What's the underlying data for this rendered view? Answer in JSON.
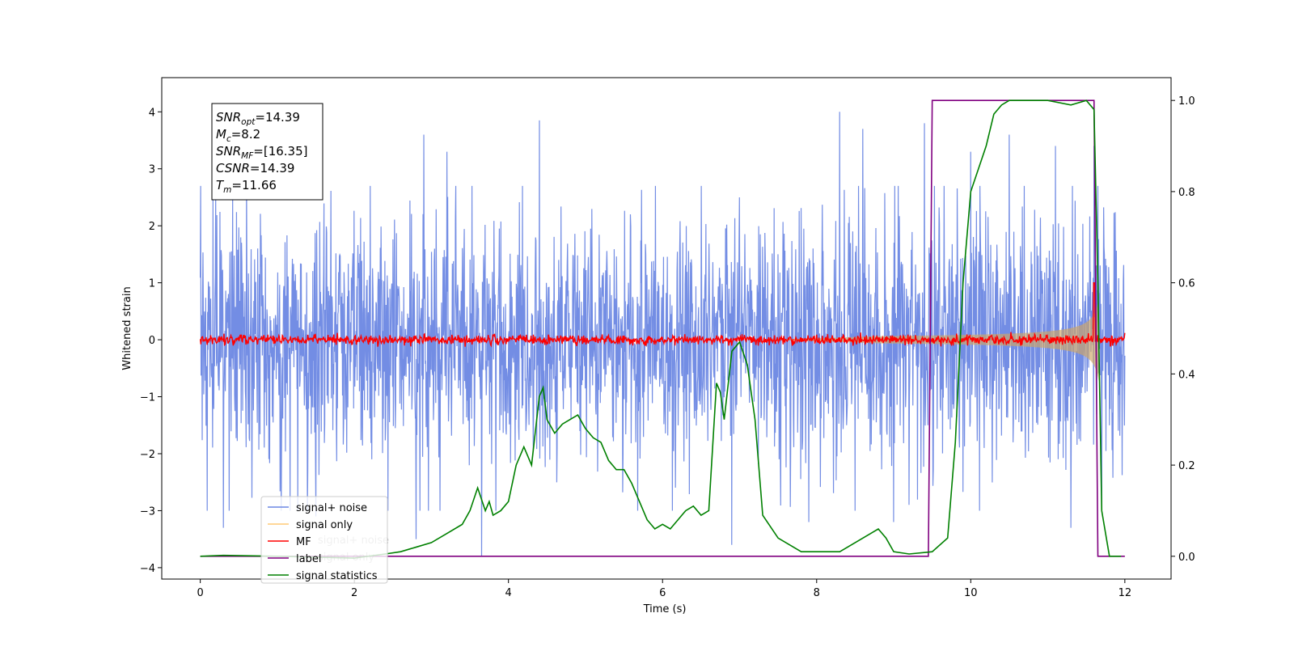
{
  "chart_data": {
    "type": "line",
    "xlabel": "Time (s)",
    "ylabel": "Whitened strain",
    "xlim": [
      -0.5,
      12.6
    ],
    "ylim": [
      -4.2,
      4.6
    ],
    "y2lim": [
      -0.05,
      1.05
    ],
    "xticks": [
      0,
      2,
      4,
      6,
      8,
      10,
      12
    ],
    "xtick_labels": [
      "0",
      "2",
      "4",
      "6",
      "8",
      "10",
      "12"
    ],
    "yticks": [
      -4,
      -3,
      -2,
      -1,
      0,
      1,
      2,
      3,
      4
    ],
    "ytick_labels": [
      "−4",
      "−3",
      "−2",
      "−1",
      "0",
      "1",
      "2",
      "3",
      "4"
    ],
    "y2ticks": [
      0.0,
      0.2,
      0.4,
      0.6,
      0.8,
      1.0
    ],
    "y2tick_labels": [
      "0.0",
      "0.2",
      "0.4",
      "0.6",
      "0.8",
      "1.0"
    ],
    "grid": false,
    "legend": {
      "position": "lower-left",
      "entries": [
        {
          "label": "signal+ noise",
          "color": "#6b87e3"
        },
        {
          "label": "signal only",
          "color": "#ffbf5a"
        },
        {
          "label": "MF",
          "color": "#ff0000"
        },
        {
          "label": "label",
          "color": "#800080"
        },
        {
          "label": "signal statistics",
          "color": "#008000"
        }
      ],
      "ghost_entries": [
        "signal+ noise",
        "signal only"
      ]
    },
    "annotation": {
      "lines": [
        {
          "base": "SNR",
          "sub": "opt",
          "value": "=14.39"
        },
        {
          "base": "M",
          "sub": "c",
          "value": "=8.2"
        },
        {
          "base": "SNR",
          "sub": "MF",
          "value": "=[16.35]"
        },
        {
          "base": "CSNR",
          "sub": "",
          "value": "=14.39"
        },
        {
          "base": "T",
          "sub": "m",
          "value": "=11.66"
        }
      ]
    },
    "series": [
      {
        "name": "signal+ noise",
        "axis": "left",
        "color": "#6b87e3",
        "x_range": [
          0,
          12
        ],
        "band_typical": 2.0,
        "peaks": [
          [
            0.2,
            2.5
          ],
          [
            0.6,
            2.9
          ],
          [
            1.5,
            3.75
          ],
          [
            2.9,
            3.6
          ],
          [
            3.2,
            3.3
          ],
          [
            4.4,
            3.85
          ],
          [
            7.0,
            2.5
          ],
          [
            7.9,
            4.2
          ],
          [
            8.3,
            4.0
          ],
          [
            8.6,
            3.7
          ],
          [
            9.4,
            3.8
          ],
          [
            10.0,
            3.3
          ],
          [
            10.5,
            3.6
          ],
          [
            11.1,
            3.4
          ],
          [
            11.6,
            3.4
          ]
        ],
        "troughs": [
          [
            0.3,
            -3.3
          ],
          [
            1.5,
            -3.1
          ],
          [
            2.8,
            -3.5
          ],
          [
            3.65,
            -3.8
          ],
          [
            6.9,
            -3.6
          ],
          [
            7.9,
            -3.2
          ],
          [
            9.0,
            -3.2
          ],
          [
            11.3,
            -3.3
          ],
          [
            11.7,
            -2.95
          ]
        ]
      },
      {
        "name": "signal only",
        "axis": "left",
        "color": "#ffbf5a",
        "t_merge": 11.66
      },
      {
        "name": "MF",
        "axis": "left",
        "color": "#ff0000",
        "x_range": [
          0,
          12
        ],
        "typical_amplitude": 0.07,
        "spike": [
          11.6,
          1.0
        ]
      },
      {
        "name": "label",
        "axis": "right",
        "color": "#800080",
        "x": [
          0,
          9.45,
          9.5,
          11.6,
          11.65,
          12
        ],
        "y": [
          0,
          0,
          1,
          1,
          0,
          0
        ]
      },
      {
        "name": "signal statistics",
        "axis": "right",
        "color": "#008000",
        "x": [
          0,
          0.3,
          1.0,
          2.0,
          2.4,
          2.6,
          2.8,
          3.0,
          3.2,
          3.4,
          3.5,
          3.6,
          3.7,
          3.75,
          3.8,
          3.9,
          4.0,
          4.1,
          4.2,
          4.3,
          4.4,
          4.45,
          4.5,
          4.6,
          4.7,
          4.8,
          4.9,
          5.0,
          5.1,
          5.2,
          5.3,
          5.4,
          5.5,
          5.6,
          5.7,
          5.8,
          5.9,
          6.0,
          6.1,
          6.2,
          6.3,
          6.4,
          6.5,
          6.6,
          6.7,
          6.75,
          6.8,
          6.9,
          7.0,
          7.1,
          7.2,
          7.3,
          7.5,
          7.8,
          8.0,
          8.3,
          8.5,
          8.7,
          8.8,
          8.9,
          9.0,
          9.2,
          9.5,
          9.7,
          9.8,
          9.9,
          10.0,
          10.1,
          10.2,
          10.3,
          10.4,
          10.5,
          10.7,
          11.0,
          11.3,
          11.5,
          11.6,
          11.65,
          11.7,
          11.8,
          11.95
        ],
        "y": [
          0.0,
          0.002,
          0.0,
          -0.004,
          0.005,
          0.01,
          0.02,
          0.03,
          0.05,
          0.07,
          0.1,
          0.15,
          0.1,
          0.12,
          0.09,
          0.1,
          0.12,
          0.2,
          0.24,
          0.2,
          0.35,
          0.37,
          0.3,
          0.27,
          0.29,
          0.3,
          0.31,
          0.28,
          0.26,
          0.25,
          0.21,
          0.19,
          0.19,
          0.16,
          0.12,
          0.08,
          0.06,
          0.07,
          0.06,
          0.08,
          0.1,
          0.11,
          0.09,
          0.1,
          0.38,
          0.36,
          0.3,
          0.45,
          0.47,
          0.42,
          0.3,
          0.09,
          0.04,
          0.01,
          0.01,
          0.01,
          0.03,
          0.05,
          0.06,
          0.04,
          0.01,
          0.005,
          0.01,
          0.04,
          0.25,
          0.6,
          0.8,
          0.85,
          0.9,
          0.97,
          0.99,
          1.0,
          1.0,
          1.0,
          0.99,
          1.0,
          0.98,
          0.6,
          0.1,
          0.0,
          0.0
        ]
      }
    ]
  }
}
